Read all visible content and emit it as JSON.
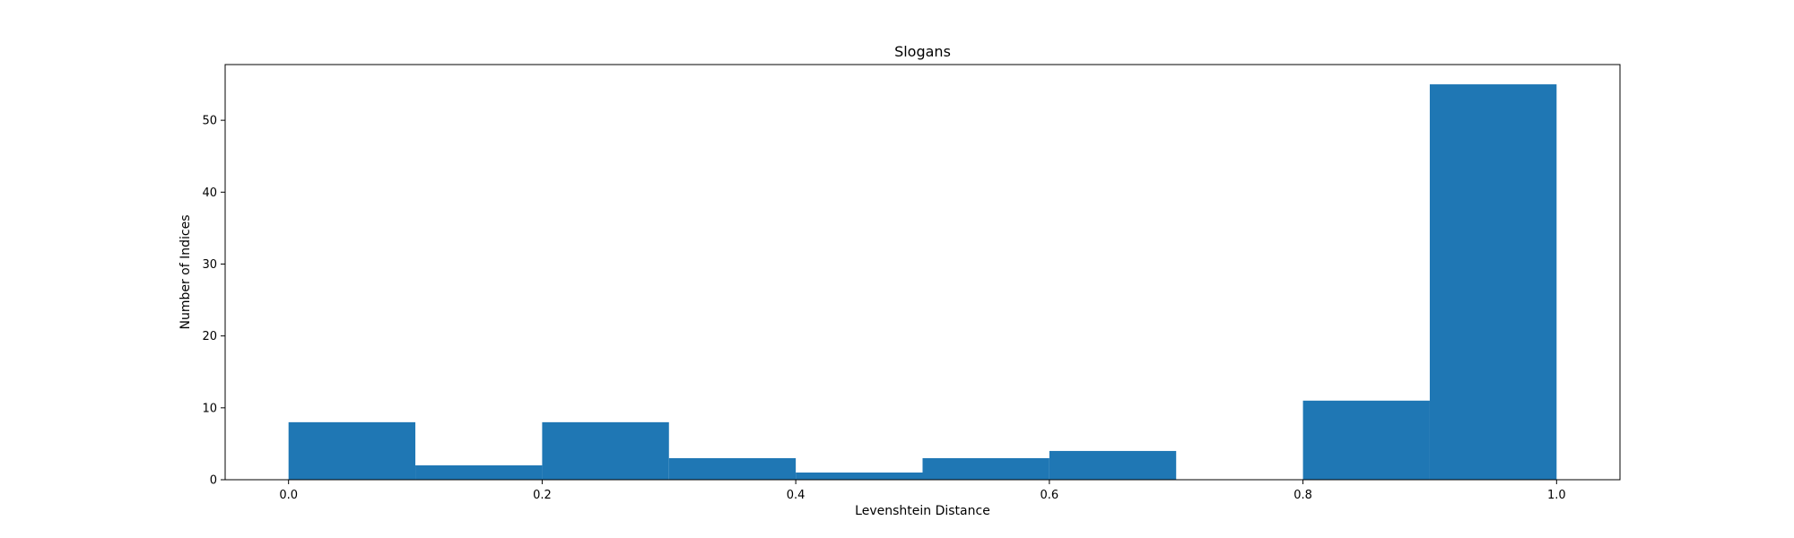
{
  "chart_data": {
    "type": "bar",
    "title": "Slogans",
    "xlabel": "Levenshtein Distance",
    "ylabel": "Number of Indices",
    "bins": [
      {
        "x0": 0.0,
        "x1": 0.1,
        "count": 8
      },
      {
        "x0": 0.1,
        "x1": 0.2,
        "count": 2
      },
      {
        "x0": 0.2,
        "x1": 0.3,
        "count": 8
      },
      {
        "x0": 0.3,
        "x1": 0.4,
        "count": 3
      },
      {
        "x0": 0.4,
        "x1": 0.5,
        "count": 1
      },
      {
        "x0": 0.5,
        "x1": 0.6,
        "count": 3
      },
      {
        "x0": 0.6,
        "x1": 0.7,
        "count": 4
      },
      {
        "x0": 0.7,
        "x1": 0.8,
        "count": 0
      },
      {
        "x0": 0.8,
        "x1": 0.9,
        "count": 11
      },
      {
        "x0": 0.9,
        "x1": 1.0,
        "count": 55
      }
    ],
    "xlim": [
      -0.05,
      1.05
    ],
    "ylim": [
      0,
      57.75
    ],
    "xticks": [
      0.0,
      0.2,
      0.4,
      0.6,
      0.8,
      1.0
    ],
    "xtick_labels": [
      "0.0",
      "0.2",
      "0.4",
      "0.6",
      "0.8",
      "1.0"
    ],
    "yticks": [
      0,
      10,
      20,
      30,
      40,
      50
    ],
    "ytick_labels": [
      "0",
      "10",
      "20",
      "30",
      "40",
      "50"
    ],
    "bar_color": "#1f77b4",
    "grid": false,
    "legend": "none"
  }
}
